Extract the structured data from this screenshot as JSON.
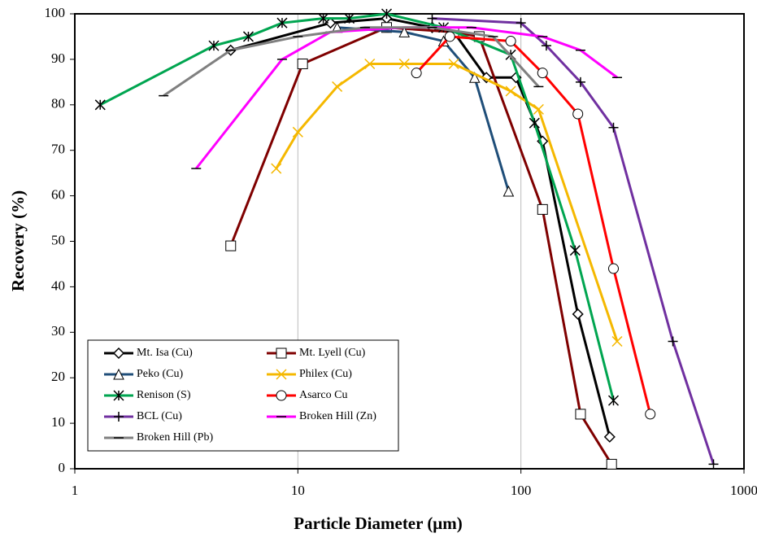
{
  "chart_data": {
    "type": "line",
    "x_label": "Particle Diameter (μm)",
    "y_label": "Recovery (%)",
    "xscale": "log",
    "xlim": [
      1,
      1000
    ],
    "xticks": [
      1,
      10,
      100,
      1000
    ],
    "ylim": [
      0,
      100
    ],
    "yticks": [
      0,
      10,
      20,
      30,
      40,
      50,
      60,
      70,
      80,
      90,
      100
    ],
    "grid": "x",
    "series": [
      {
        "name": "Mt. Isa (Cu)",
        "color": "#000000",
        "marker": "diamond",
        "x": [
          5,
          14,
          25,
          40,
          50,
          70,
          95,
          125,
          180,
          250
        ],
        "values": [
          92,
          98,
          99,
          97,
          96,
          86,
          86,
          72,
          34,
          7
        ]
      },
      {
        "name": "Mt. Lyell (Cu)",
        "color": "#7f0000",
        "marker": "square",
        "x": [
          5,
          10.5,
          25,
          50,
          65,
          125,
          185,
          255
        ],
        "values": [
          49,
          89,
          97,
          96,
          95,
          57,
          12,
          1
        ]
      },
      {
        "name": "Peko (Cu)",
        "color": "#1f4e79",
        "marker": "triangle",
        "x": [
          15,
          30,
          45,
          62,
          88
        ],
        "values": [
          97,
          96,
          94,
          86,
          61
        ]
      },
      {
        "name": "Philex (Cu)",
        "color": "#f5b800",
        "marker": "x",
        "x": [
          8,
          10,
          15,
          21,
          30,
          50,
          90,
          120,
          270
        ],
        "values": [
          66,
          74,
          84,
          89,
          89,
          89,
          83,
          79,
          28
        ]
      },
      {
        "name": "Renison (S)",
        "color": "#00a550",
        "marker": "asterisk",
        "x": [
          1.3,
          4.2,
          6,
          8.5,
          13,
          17,
          25,
          45,
          90,
          115,
          175,
          260
        ],
        "values": [
          80,
          93,
          95,
          98,
          99,
          99,
          100,
          97,
          91,
          76,
          48,
          15
        ]
      },
      {
        "name": "Asarco Cu",
        "color": "#ff0000",
        "marker": "circle",
        "x": [
          34,
          48,
          90,
          125,
          180,
          260,
          380
        ],
        "values": [
          87,
          95,
          94,
          87,
          78,
          44,
          12
        ]
      },
      {
        "name": "BCL (Cu)",
        "color": "#7030a0",
        "marker": "plus",
        "x": [
          40,
          100,
          130,
          185,
          260,
          480,
          730
        ],
        "values": [
          99,
          98,
          93,
          85,
          75,
          28,
          1
        ]
      },
      {
        "name": "Broken Hill (Zn)",
        "color": "#ff00ff",
        "marker": "dash",
        "x": [
          3.5,
          8.5,
          14,
          30,
          60,
          125,
          185,
          270
        ],
        "values": [
          66,
          90,
          96,
          97,
          97,
          95,
          92,
          86
        ]
      },
      {
        "name": "Broken Hill (Pb)",
        "color": "#808080",
        "marker": "dash",
        "x": [
          2.5,
          5,
          10,
          20,
          40,
          75,
          120
        ],
        "values": [
          82,
          92,
          95,
          97,
          97,
          95,
          84
        ]
      }
    ]
  }
}
